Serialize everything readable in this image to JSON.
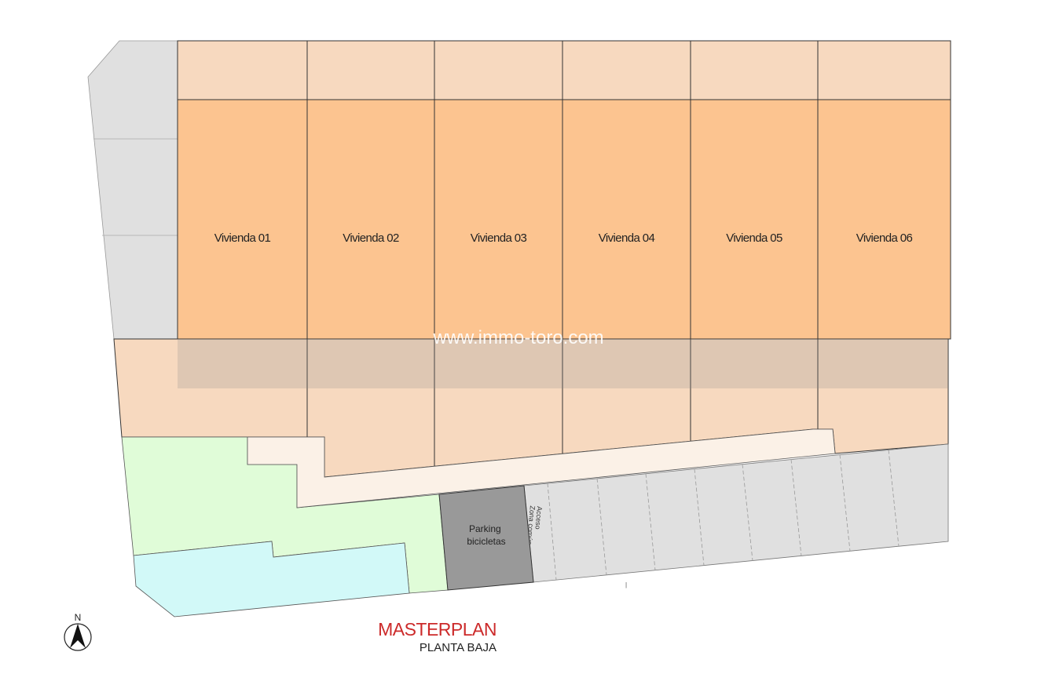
{
  "plan": {
    "units": [
      {
        "label": "Vivienda 01"
      },
      {
        "label": "Vivienda 02"
      },
      {
        "label": "Vivienda 03"
      },
      {
        "label": "Vivienda 04"
      },
      {
        "label": "Vivienda 05"
      },
      {
        "label": "Vivienda 06"
      }
    ],
    "bike_parking": {
      "line1": "Parking",
      "line2": "bicicletas"
    },
    "access": {
      "line1": "Acceso",
      "line2": "Zona común"
    },
    "north_label": "N",
    "watermark": "www.immo-toro.com"
  },
  "title": {
    "main": "MASTERPLAN",
    "sub": "PLANTA BAJA"
  },
  "colors": {
    "unit_orange": "#fcc490",
    "terrace_peach": "#f7d9bf",
    "garden_green": "#e0fcd8",
    "pool_blue": "#d2f9f8",
    "path_cream": "#fbf1e7",
    "parking_gray": "#e0e0e0",
    "bike_parking_gray": "#999999",
    "title_red": "#cc2a2a"
  }
}
